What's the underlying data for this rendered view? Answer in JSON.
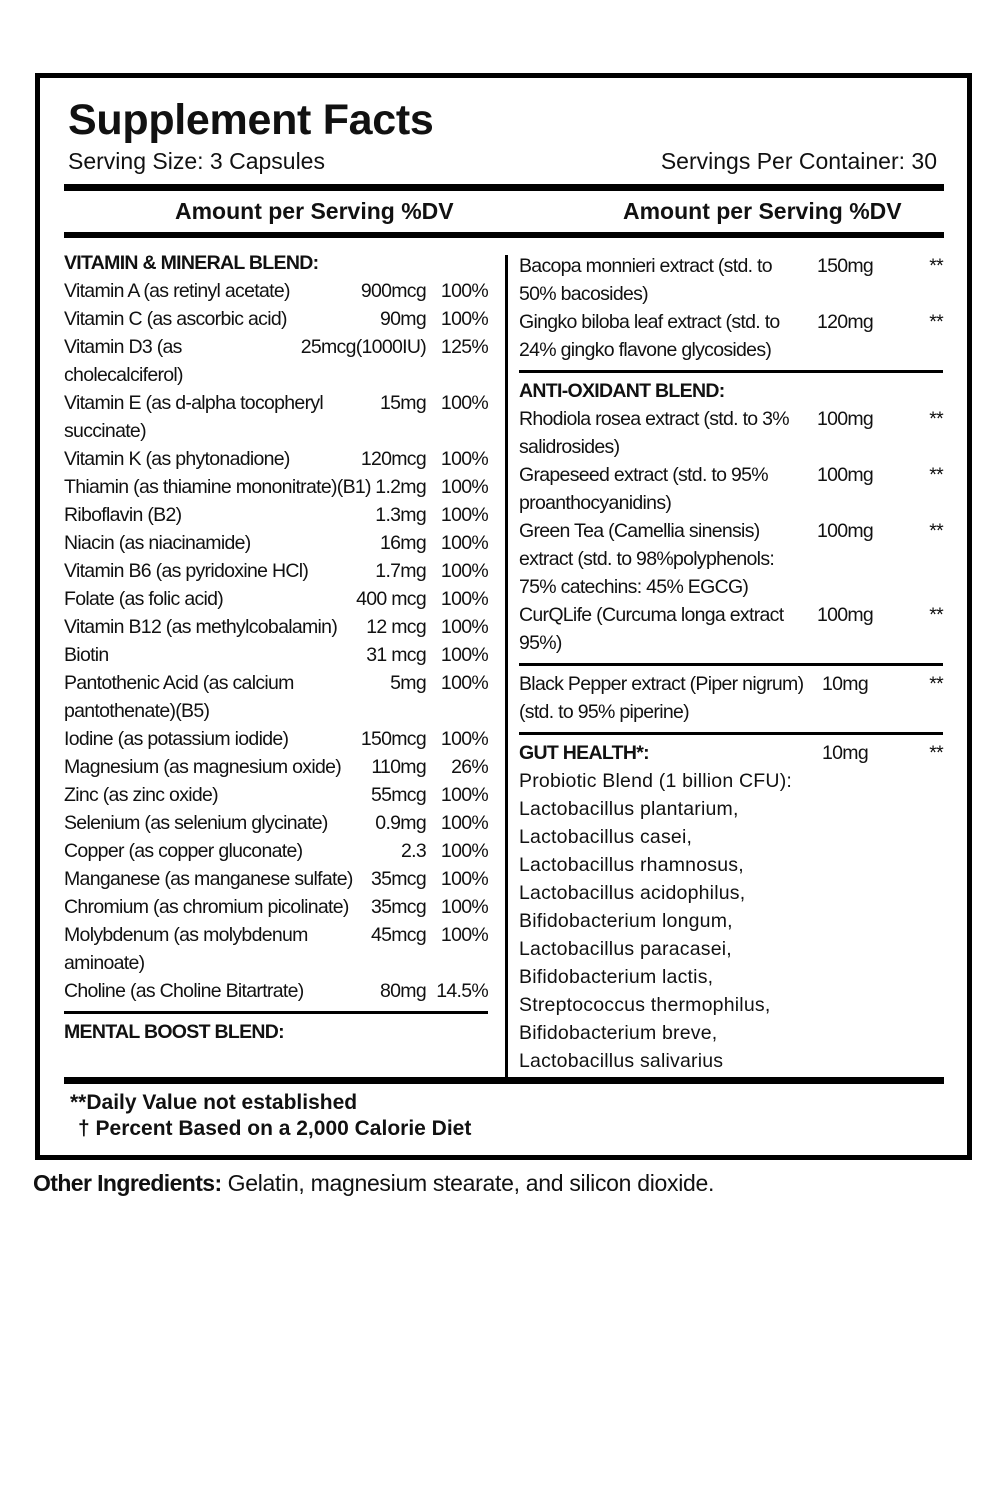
{
  "header": {
    "title": "Supplement Facts",
    "serving_size": "Serving Size: 3 Capsules",
    "servings_per_container": "Servings Per Container: 30"
  },
  "column_headers": [
    {
      "amount": "Amount per Serving",
      "dv": "%DV"
    },
    {
      "amount": "Amount per Serving",
      "dv": "%DV"
    }
  ],
  "left": {
    "heading": "VITAMIN & MINERAL BLEND:",
    "rows": [
      [
        "Vitamin A (as retinyl acetate)",
        "900mcg",
        "100%"
      ],
      [
        "Vitamin C (as ascorbic acid)",
        "90mg",
        "100%"
      ],
      [
        "Vitamin D3 (as cholecalciferol)",
        "25mcg(1000IU)",
        "125%"
      ],
      [
        "Vitamin E (as d-alpha tocopheryl succinate)",
        "15mg",
        "100%"
      ],
      [
        "Vitamin K (as phytonadione)",
        "120mcg",
        "100%"
      ],
      [
        "Thiamin (as thiamine mononitrate)(B1)",
        "1.2mg",
        "100%"
      ],
      [
        "Riboflavin (B2)",
        "1.3mg",
        "100%"
      ],
      [
        "Niacin (as niacinamide)",
        "16mg",
        "100%"
      ],
      [
        "Vitamin B6 (as pyridoxine HCl)",
        "1.7mg",
        "100%"
      ],
      [
        "Folate (as folic acid)",
        "400 mcg",
        "100%"
      ],
      [
        "Vitamin B12 (as methylcobalamin)",
        "12 mcg",
        "100%"
      ],
      [
        "Biotin",
        "31 mcg",
        "100%"
      ],
      [
        "Pantothenic Acid (as calcium pantothenate)(B5)",
        "5mg",
        "100%"
      ],
      [
        "Iodine (as potassium iodide)",
        "150mcg",
        "100%"
      ],
      [
        "Magnesium (as magnesium oxide)",
        "110mg",
        "26%"
      ],
      [
        "Zinc (as zinc oxide)",
        "55mcg",
        "100%"
      ],
      [
        "Selenium (as selenium glycinate)",
        "0.9mg",
        "100%"
      ],
      [
        "Copper (as copper gluconate)",
        "2.3",
        "100%"
      ],
      [
        "Manganese (as manganese sulfate)",
        "35mcg",
        "100%"
      ],
      [
        "Chromium (as chromium picolinate)",
        "35mcg",
        "100%"
      ],
      [
        "Molybdenum (as molybdenum aminoate)",
        "45mcg",
        "100%"
      ],
      [
        "Choline (as Choline Bitartrate)",
        "80mg",
        "14.5%"
      ]
    ],
    "footer_heading": "MENTAL BOOST BLEND:"
  },
  "right": {
    "sections": [
      {
        "rows": [
          [
            "Bacopa monnieri extract (std. to 50% bacosides)",
            "150mg",
            "**"
          ],
          [
            "Gingko biloba leaf extract (std. to 24% gingko flavone glycosides)",
            "120mg",
            "**"
          ]
        ]
      },
      {
        "heading": "ANTI-OXIDANT BLEND:",
        "rows": [
          [
            "Rhodiola rosea extract (std. to 3% salidrosides)",
            "100mg",
            "**"
          ],
          [
            "Grapeseed extract (std. to 95% proanthocyanidins)",
            "100mg",
            "**"
          ],
          [
            "Green Tea (Camellia sinensis) extract (std. to 98%polyphenols: 75% catechins: 45% EGCG)",
            "100mg",
            "**"
          ],
          [
            "CurQLife (Curcuma longa extract 95%)",
            "100mg",
            "**"
          ]
        ]
      },
      {
        "rows": [
          [
            "Black Pepper extract (Piper nigrum)(std. to 95% piperine)",
            "10mg",
            "**"
          ]
        ]
      },
      {
        "heading": "GUT HEALTH*:",
        "heading_amount": "10mg",
        "heading_dv": "**",
        "description": "Probiotic Blend (1 billion CFU): Lactobacillus plantarium, Lactobacillus casei, Lactobacillus rhamnosus, Lactobacillus acidophilus, Bifidobacterium longum, Lactobacillus paracasei, Bifidobacterium lactis, Streptococcus thermophilus, Bifidobacterium breve, Lactobacillus salivarius"
      }
    ]
  },
  "notes": [
    "**Daily Value not established",
    "† Percent Based on a 2,000 Calorie Diet"
  ],
  "other_ingredients": {
    "label": "Other Ingredients:",
    "text": "Gelatin, magnesium stearate, and silicon dioxide."
  }
}
